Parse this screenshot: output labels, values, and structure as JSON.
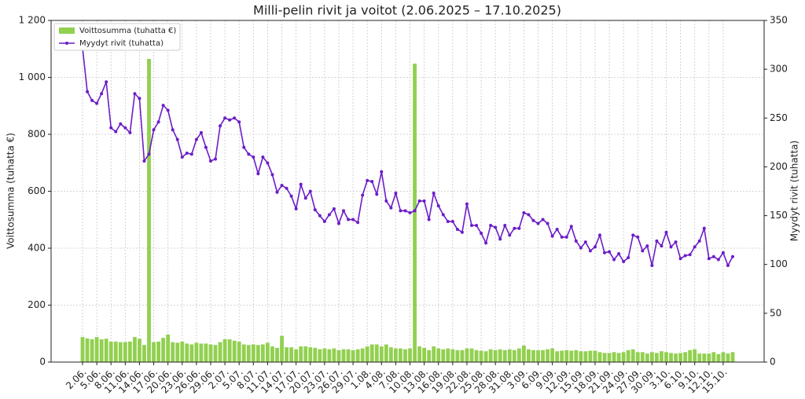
{
  "chart_data": {
    "type": "bar",
    "title": "Milli-pelin rivit ja voitot (2.06.2025 – 17.10.2025)",
    "y_label": "Voittosumma (tuhatta €)",
    "y2_label": "Myydyt rivit (tuhatta)",
    "categories": [
      "2.06.",
      null,
      null,
      "5.06.",
      null,
      null,
      "8.06.",
      null,
      null,
      "11.06.",
      null,
      null,
      "14.06.",
      null,
      null,
      "17.06.",
      null,
      null,
      "20.06.",
      null,
      null,
      "23.06.",
      null,
      null,
      "26.06.",
      null,
      null,
      "29.06.",
      null,
      null,
      "2.07.",
      null,
      null,
      "5.07.",
      null,
      null,
      "8.07.",
      null,
      null,
      "11.07.",
      null,
      null,
      "14.07.",
      null,
      null,
      "17.07.",
      null,
      null,
      "20.07.",
      null,
      null,
      "23.07.",
      null,
      null,
      "26.07.",
      null,
      null,
      "29.07.",
      null,
      null,
      "1.08.",
      null,
      null,
      "4.08.",
      null,
      null,
      "7.08.",
      null,
      null,
      "10.08.",
      null,
      null,
      "13.08.",
      null,
      null,
      "16.08.",
      null,
      null,
      "19.08.",
      null,
      null,
      "22.08.",
      null,
      null,
      "25.08.",
      null,
      null,
      "28.08.",
      null,
      null,
      "31.08.",
      null,
      null,
      "3.09.",
      null,
      null,
      "6.09.",
      null,
      null,
      "9.09.",
      null,
      null,
      "12.09.",
      null,
      null,
      "15.09.",
      null,
      null,
      "18.09.",
      null,
      null,
      "21.09.",
      null,
      null,
      "24.09.",
      null,
      null,
      "27.09.",
      null,
      null,
      "30.09.",
      null,
      null,
      "3.10.",
      null,
      null,
      "6.10.",
      null,
      null,
      "9.10.",
      null,
      null,
      "12.10.",
      null,
      null,
      "15.10.",
      null,
      null
    ],
    "series": [
      {
        "name": "Voittosumma (tuhatta €)",
        "type": "bar",
        "color": "#92d050",
        "values": [
          88,
          83,
          80,
          88,
          80,
          82,
          72,
          72,
          70,
          70,
          72,
          88,
          82,
          60,
          1065,
          70,
          72,
          85,
          97,
          70,
          68,
          72,
          65,
          62,
          68,
          65,
          65,
          62,
          60,
          70,
          80,
          80,
          75,
          72,
          62,
          60,
          62,
          60,
          62,
          68,
          55,
          50,
          92,
          52,
          52,
          45,
          55,
          55,
          52,
          50,
          45,
          48,
          45,
          48,
          42,
          45,
          45,
          42,
          45,
          48,
          55,
          62,
          62,
          55,
          62,
          52,
          48,
          48,
          45,
          48,
          1048,
          55,
          50,
          42,
          55,
          48,
          45,
          48,
          45,
          42,
          42,
          48,
          48,
          42,
          40,
          38,
          45,
          42,
          45,
          42,
          45,
          42,
          48,
          58,
          45,
          42,
          42,
          42,
          45,
          48,
          38,
          40,
          42,
          40,
          42,
          38,
          38,
          40,
          40,
          35,
          32,
          32,
          35,
          32,
          35,
          42,
          45,
          35,
          35,
          30,
          35,
          32,
          38,
          35,
          32,
          30,
          32,
          35,
          42,
          45,
          30,
          30,
          30,
          35,
          28,
          35,
          30,
          35
        ]
      },
      {
        "name": "Myydyt rivit (tuhatta)",
        "type": "line",
        "axis": "y2",
        "color": "#6c1cc8",
        "values": [
          322,
          277,
          268,
          265,
          275,
          287,
          240,
          236,
          244,
          240,
          235,
          275,
          270,
          206,
          213,
          238,
          246,
          263,
          258,
          238,
          228,
          210,
          214,
          213,
          228,
          235,
          220,
          206,
          208,
          242,
          250,
          248,
          250,
          246,
          220,
          213,
          210,
          193,
          210,
          204,
          192,
          174,
          181,
          178,
          170,
          157,
          182,
          168,
          175,
          156,
          150,
          144,
          151,
          157,
          142,
          155,
          146,
          146,
          143,
          171,
          186,
          185,
          172,
          195,
          165,
          158,
          173,
          155,
          155,
          153,
          155,
          165,
          165,
          146,
          173,
          160,
          151,
          144,
          144,
          136,
          133,
          162,
          140,
          140,
          132,
          122,
          140,
          138,
          126,
          140,
          130,
          137,
          137,
          153,
          151,
          145,
          142,
          146,
          142,
          129,
          136,
          128,
          128,
          139,
          124,
          117,
          123,
          114,
          118,
          130,
          112,
          113,
          105,
          111,
          103,
          107,
          130,
          128,
          114,
          119,
          99,
          124,
          119,
          133,
          118,
          123,
          106,
          109,
          110,
          118,
          124,
          137,
          106,
          108,
          105,
          112,
          99,
          108
        ]
      }
    ],
    "ylim": [
      0,
      1200
    ],
    "yticks": [
      0,
      200,
      400,
      600,
      800,
      {
        "value": 1000,
        "label": "1 000"
      },
      {
        "value": 1200,
        "label": "1 200"
      }
    ],
    "y2lim": [
      0,
      350
    ],
    "y2ticks": [
      0,
      50,
      100,
      150,
      200,
      250,
      300,
      350
    ],
    "grid": true,
    "legend": "upper left"
  }
}
